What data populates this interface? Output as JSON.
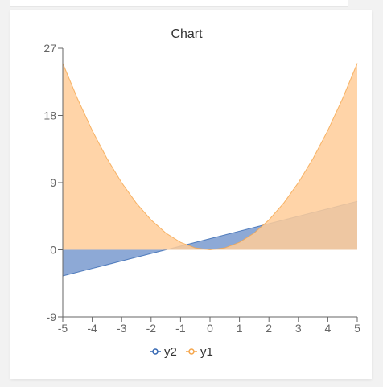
{
  "chart_data": {
    "type": "area",
    "title": "Chart",
    "xlabel": "",
    "ylabel": "",
    "xlim": [
      -5,
      5
    ],
    "ylim": [
      -9,
      27
    ],
    "xticks": [
      "-5",
      "-4",
      "-3",
      "-2",
      "-1",
      "0",
      "1",
      "2",
      "3",
      "4",
      "5"
    ],
    "yticks": [
      "-9",
      "0",
      "9",
      "18",
      "27"
    ],
    "legend_position": "bottom",
    "grid": false,
    "series": [
      {
        "name": "y2",
        "color": "#3366b2",
        "fill": "#8da9d6",
        "x": [
          -5,
          -4,
          -3,
          -2,
          -1,
          0,
          1,
          2,
          3,
          4,
          5
        ],
        "values": [
          -3.5,
          -2.5,
          -1.5,
          -0.5,
          0.5,
          1.5,
          2.5,
          3.5,
          4.5,
          5.5,
          6.5
        ]
      },
      {
        "name": "y1",
        "color": "#f5a54a",
        "fill": "#ffcc99",
        "x": [
          -5,
          -4.5,
          -4,
          -3.5,
          -3,
          -2.5,
          -2,
          -1.5,
          -1,
          -0.5,
          0,
          0.5,
          1,
          1.5,
          2,
          2.5,
          3,
          3.5,
          4,
          4.5,
          5
        ],
        "values": [
          25,
          20.25,
          16,
          12.25,
          9,
          6.25,
          4,
          2.25,
          1,
          0.25,
          0,
          0.25,
          1,
          2.25,
          4,
          6.25,
          9,
          12.25,
          16,
          20.25,
          25
        ]
      }
    ]
  }
}
